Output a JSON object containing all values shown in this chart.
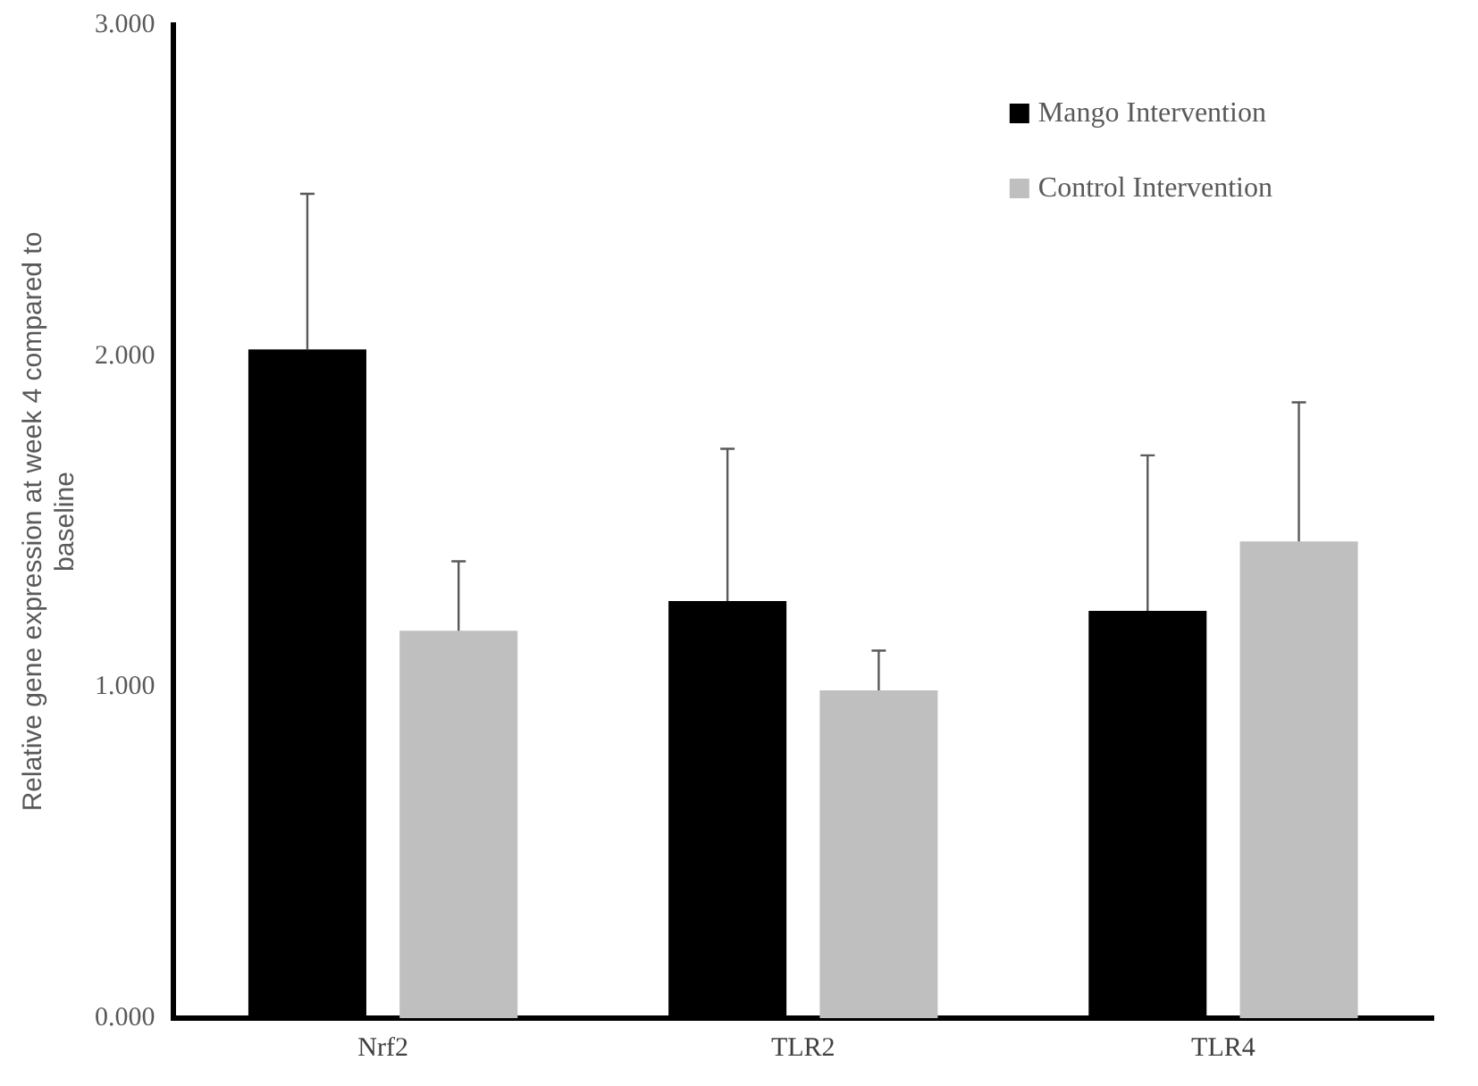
{
  "chart_data": {
    "type": "bar",
    "ylabel": "Relative gene expression at week 4 compared to baseline",
    "categories": [
      "Nrf2",
      "TLR2",
      "TLR4"
    ],
    "series": [
      {
        "name": "Mango Intervention",
        "color": "#000000",
        "values": [
          2.02,
          1.26,
          1.23
        ],
        "errors": [
          [
            2.02,
            2.49
          ],
          [
            1.26,
            1.72
          ],
          [
            1.23,
            1.7
          ]
        ]
      },
      {
        "name": "Control Intervention",
        "color": "#bfbfbf",
        "values": [
          1.17,
          0.99,
          1.44
        ],
        "errors": [
          [
            1.17,
            1.38
          ],
          [
            0.99,
            1.11
          ],
          [
            1.44,
            1.86
          ]
        ]
      }
    ],
    "ylim": [
      0,
      3
    ],
    "yticks": [
      {
        "value": 0,
        "label": "0.000"
      },
      {
        "value": 1,
        "label": "1.000"
      },
      {
        "value": 2,
        "label": "2.000"
      },
      {
        "value": 3,
        "label": "3.000"
      }
    ],
    "grid": false,
    "legend": "top right"
  }
}
